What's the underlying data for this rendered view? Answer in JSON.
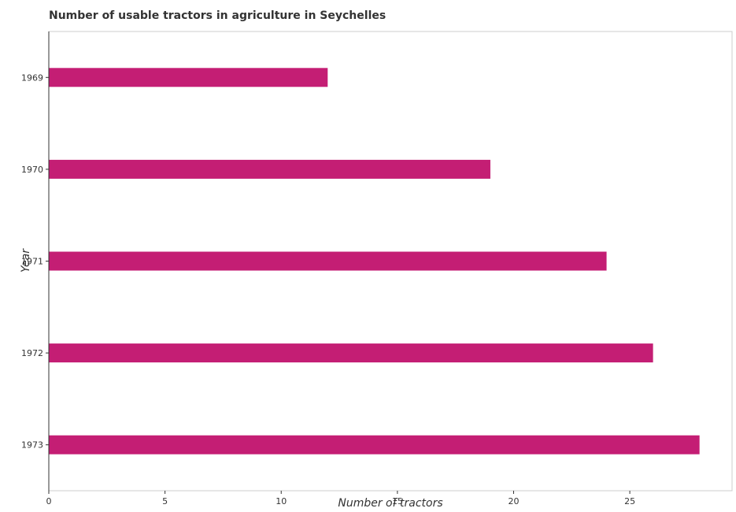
{
  "chart_data": {
    "type": "bar",
    "orientation": "horizontal",
    "title": "Number of usable tractors in agriculture in Seychelles",
    "xlabel": "Number of tractors",
    "ylabel": "Year",
    "categories": [
      "1969",
      "1970",
      "1971",
      "1972",
      "1973"
    ],
    "values": [
      12,
      19,
      24,
      26,
      28
    ],
    "xlim": [
      0,
      29.4
    ],
    "xticks": [
      0,
      5,
      10,
      15,
      20,
      25
    ],
    "xtick_labels": [
      "0",
      "5",
      "10",
      "15",
      "20",
      "25"
    ],
    "bar_color": "#c41e74",
    "grid": false,
    "legend": "none"
  }
}
